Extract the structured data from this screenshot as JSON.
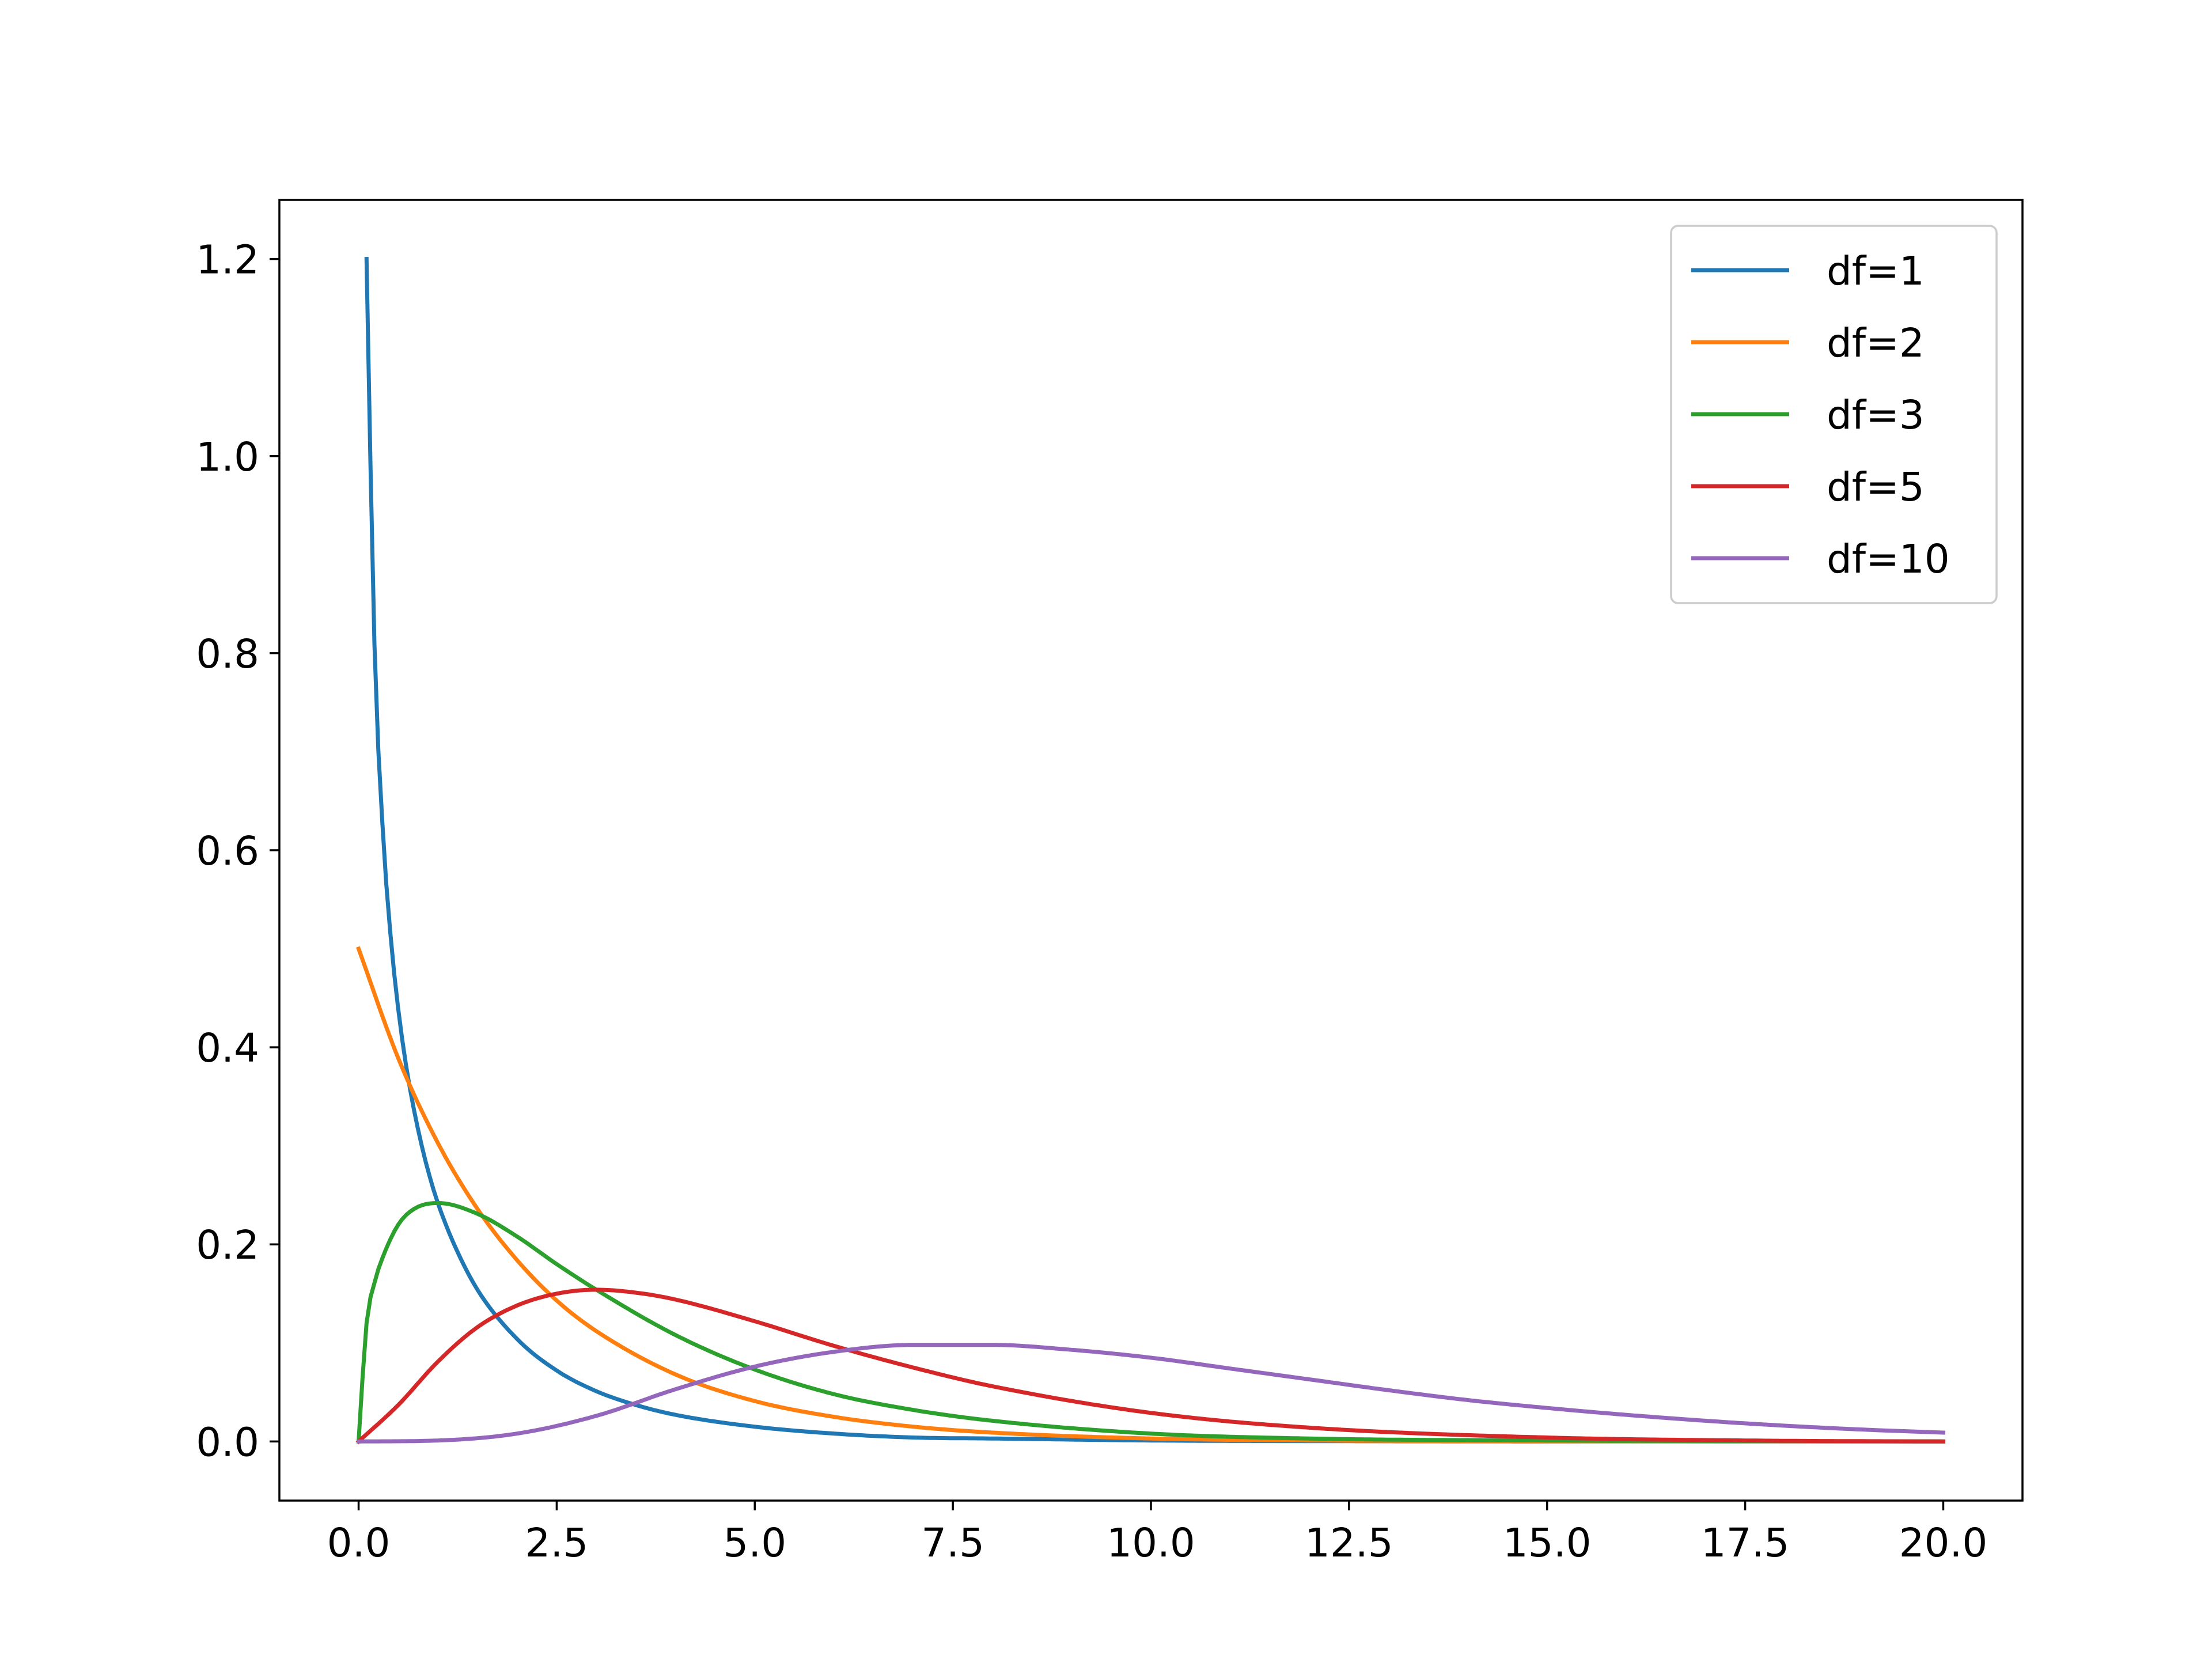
{
  "chart_data": {
    "type": "line",
    "title": "",
    "xlabel": "",
    "ylabel": "",
    "xlim": [
      -1.0,
      21.0
    ],
    "ylim": [
      -0.06,
      1.26
    ],
    "x_ticks": [
      0.0,
      2.5,
      5.0,
      7.5,
      10.0,
      12.5,
      15.0,
      17.5,
      20.0
    ],
    "x_tick_labels": [
      "0.0",
      "2.5",
      "5.0",
      "7.5",
      "10.0",
      "12.5",
      "15.0",
      "17.5",
      "20.0"
    ],
    "y_ticks": [
      0.0,
      0.2,
      0.4,
      0.6,
      0.8,
      1.0,
      1.2
    ],
    "y_tick_labels": [
      "0.0",
      "0.2",
      "0.4",
      "0.6",
      "0.8",
      "1.0",
      "1.2"
    ],
    "grid": false,
    "legend_position": "top-right",
    "x_range": [
      0,
      20
    ],
    "series": [
      {
        "name": "df=1",
        "color": "#1f77b4",
        "x": [
          0.1,
          0.2,
          0.3,
          0.4,
          0.5,
          0.6,
          0.7,
          0.8,
          0.9,
          1.0,
          1.2,
          1.5,
          2.0,
          2.5,
          3.0,
          3.5,
          4.0,
          5.0,
          6.0,
          7.0,
          8.0,
          10.0,
          12.0,
          15.0,
          20.0
        ],
        "y": [
          1.2,
          0.808,
          0.627,
          0.516,
          0.439,
          0.381,
          0.336,
          0.299,
          0.268,
          0.242,
          0.201,
          0.154,
          0.104,
          0.072,
          0.051,
          0.037,
          0.027,
          0.015,
          0.008,
          0.004,
          0.003,
          0.001,
          0.0004,
          0.0001,
          0.0
        ]
      },
      {
        "name": "df=2",
        "color": "#ff7f0e",
        "x": [
          0.0,
          0.5,
          1.0,
          1.5,
          2.0,
          2.5,
          3.0,
          4.0,
          5.0,
          6.0,
          7.0,
          8.0,
          10.0,
          12.0,
          15.0,
          20.0
        ],
        "y": [
          0.5,
          0.389,
          0.303,
          0.236,
          0.184,
          0.143,
          0.112,
          0.068,
          0.041,
          0.025,
          0.015,
          0.009,
          0.003,
          0.001,
          0.0003,
          0.0
        ]
      },
      {
        "name": "df=3",
        "color": "#2ca02c",
        "x": [
          0.0,
          0.1,
          0.2,
          0.3,
          0.5,
          0.7,
          1.0,
          1.5,
          2.0,
          2.5,
          3.0,
          4.0,
          5.0,
          6.0,
          7.0,
          8.0,
          10.0,
          12.0,
          15.0,
          20.0
        ],
        "y": [
          0.0,
          0.12,
          0.161,
          0.186,
          0.22,
          0.236,
          0.242,
          0.231,
          0.208,
          0.18,
          0.154,
          0.108,
          0.073,
          0.048,
          0.032,
          0.021,
          0.008,
          0.003,
          0.001,
          0.0
        ]
      },
      {
        "name": "df=5",
        "color": "#d62728",
        "x": [
          0.0,
          0.5,
          1.0,
          1.5,
          2.0,
          2.5,
          3.0,
          3.5,
          4.0,
          5.0,
          6.0,
          7.0,
          8.0,
          10.0,
          12.0,
          15.0,
          17.5,
          20.0
        ],
        "y": [
          0.0,
          0.037,
          0.081,
          0.116,
          0.138,
          0.15,
          0.154,
          0.151,
          0.144,
          0.122,
          0.097,
          0.075,
          0.056,
          0.029,
          0.014,
          0.004,
          0.001,
          0.0
        ]
      },
      {
        "name": "df=10",
        "color": "#9467bd",
        "x": [
          0.0,
          1.0,
          2.0,
          3.0,
          4.0,
          5.0,
          6.0,
          7.0,
          8.0,
          9.0,
          10.0,
          11.0,
          12.0,
          13.0,
          14.0,
          15.0,
          16.0,
          17.0,
          18.0,
          19.0,
          20.0
        ],
        "y": [
          0.0,
          0.001,
          0.008,
          0.026,
          0.053,
          0.076,
          0.091,
          0.098,
          0.098,
          0.093,
          0.085,
          0.074,
          0.063,
          0.052,
          0.042,
          0.034,
          0.027,
          0.021,
          0.016,
          0.012,
          0.009
        ]
      }
    ]
  }
}
